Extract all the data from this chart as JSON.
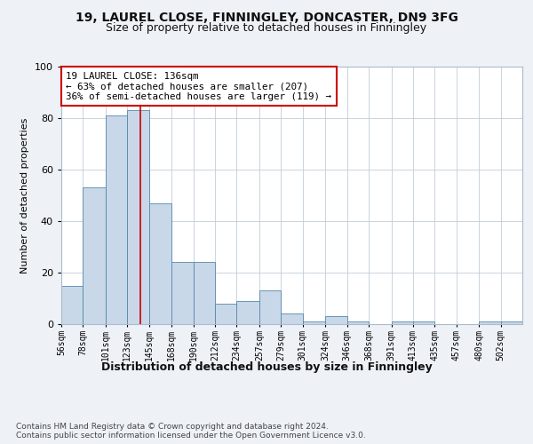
{
  "title": "19, LAUREL CLOSE, FINNINGLEY, DONCASTER, DN9 3FG",
  "subtitle": "Size of property relative to detached houses in Finningley",
  "xlabel": "Distribution of detached houses by size in Finningley",
  "ylabel": "Number of detached properties",
  "bins": [
    56,
    78,
    101,
    123,
    145,
    168,
    190,
    212,
    234,
    257,
    279,
    301,
    324,
    346,
    368,
    391,
    413,
    435,
    457,
    480,
    502
  ],
  "bar_heights": [
    15,
    53,
    81,
    83,
    47,
    24,
    24,
    8,
    9,
    13,
    4,
    1,
    3,
    1,
    0,
    1,
    1,
    0,
    0,
    1,
    1
  ],
  "bar_color": "#c8d8e8",
  "bar_edge_color": "#5588aa",
  "property_line_x": 136,
  "property_line_color": "#cc0000",
  "annotation_text": "19 LAUREL CLOSE: 136sqm\n← 63% of detached houses are smaller (207)\n36% of semi-detached houses are larger (119) →",
  "annotation_box_color": "#ffffff",
  "annotation_box_edge": "#cc0000",
  "ylim": [
    0,
    100
  ],
  "yticks": [
    0,
    20,
    40,
    60,
    80,
    100
  ],
  "background_color": "#eef2f7",
  "plot_bg_color": "#ffffff",
  "footer": "Contains HM Land Registry data © Crown copyright and database right 2024.\nContains public sector information licensed under the Open Government Licence v3.0.",
  "title_fontsize": 10,
  "subtitle_fontsize": 9,
  "xlabel_fontsize": 9,
  "ylabel_fontsize": 8
}
